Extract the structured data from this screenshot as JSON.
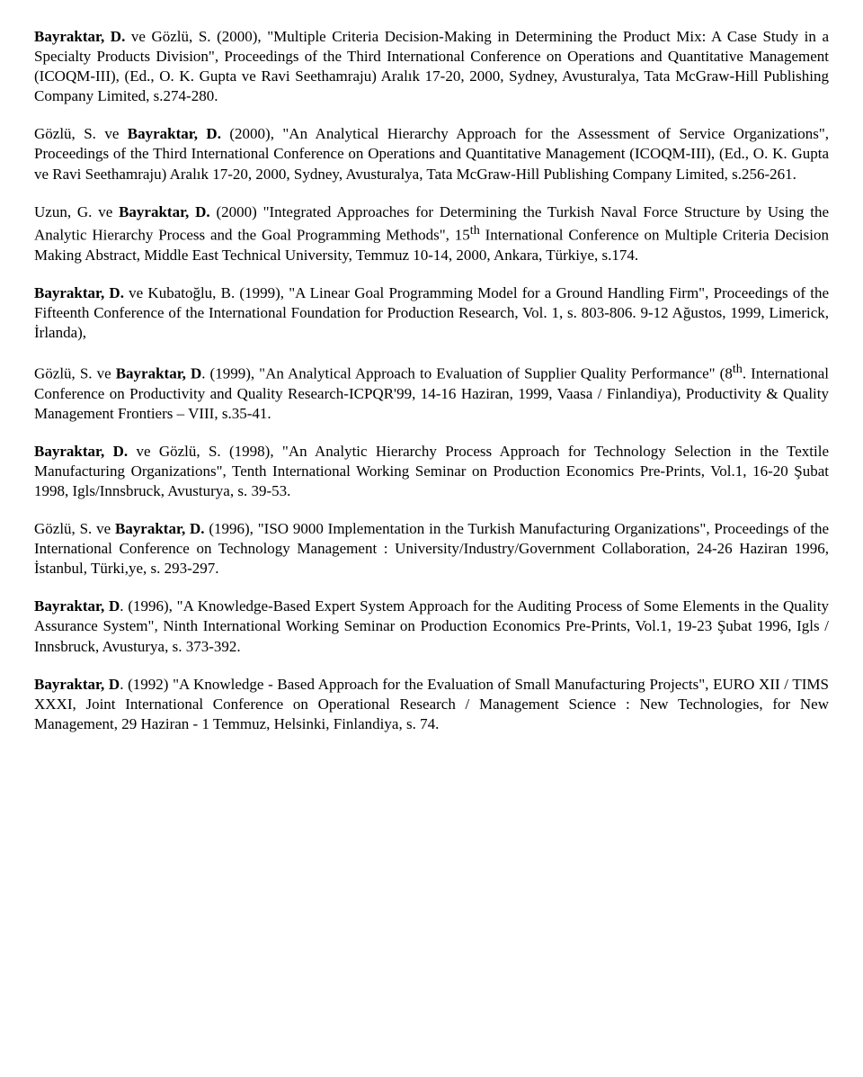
{
  "entries": [
    {
      "segments": [
        {
          "text": "Bayraktar, D.",
          "bold": true
        },
        {
          "text": " ve Gözlü, S. (2000), \"Multiple Criteria Decision-Making in Determining the Product Mix: A Case Study in a Specialty Products Division\", Proceedings of the Third International Conference on Operations and Quantitative Management (ICOQM-III), (Ed., O. K. Gupta ve Ravi Seethamraju) Aralık 17-20, 2000, Sydney, Avusturalya, Tata McGraw-Hill Publishing Company Limited, s.274-280.",
          "bold": false
        }
      ]
    },
    {
      "segments": [
        {
          "text": "Gözlü, S. ve ",
          "bold": false
        },
        {
          "text": "Bayraktar, D.",
          "bold": true
        },
        {
          "text": " (2000), \"An Analytical Hierarchy Approach for the Assessment of Service Organizations\", Proceedings of the Third International Conference on Operations and Quantitative Management (ICOQM-III), (Ed., O. K. Gupta ve Ravi Seethamraju) Aralık 17-20, 2000, Sydney, Avusturalya, Tata McGraw-Hill Publishing Company Limited, s.256-261.",
          "bold": false
        }
      ]
    },
    {
      "segments": [
        {
          "text": "Uzun, G. ve ",
          "bold": false
        },
        {
          "text": "Bayraktar, D.",
          "bold": true
        },
        {
          "text": " (2000) \"Integrated Approaches for Determining the Turkish Naval Force Structure by Using the Analytic Hierarchy Process and the Goal Programming Methods\", 15",
          "bold": false
        },
        {
          "text": "th",
          "bold": false,
          "sup": true
        },
        {
          "text": " International Conference on Multiple Criteria Decision Making Abstract, Middle East Technical University, Temmuz 10-14, 2000, Ankara, Türkiye, s.174.",
          "bold": false
        }
      ]
    },
    {
      "segments": [
        {
          "text": "Bayraktar, D.",
          "bold": true
        },
        {
          "text": " ve Kubatoğlu, B. (1999), \"A Linear Goal Programming Model for a Ground Handling Firm\", Proceedings of the Fifteenth Conference of the International Foundation for Production Research, Vol. 1, s. 803-806. 9-12 Ağustos, 1999, Limerick, İrlanda),",
          "bold": false
        }
      ]
    },
    {
      "segments": [
        {
          "text": "Gözlü, S. ve ",
          "bold": false
        },
        {
          "text": "Bayraktar, D",
          "bold": true
        },
        {
          "text": ". (1999), \"An Analytical Approach to Evaluation of Supplier Quality Performance\" (8",
          "bold": false
        },
        {
          "text": "th",
          "bold": false,
          "sup": true
        },
        {
          "text": ". International Conference on Productivity and Quality Research-ICPQR'99, 14-16 Haziran, 1999, Vaasa / Finlandiya), Productivity & Quality Management Frontiers – VIII, s.35-41.",
          "bold": false
        }
      ]
    },
    {
      "segments": [
        {
          "text": "Bayraktar, D.",
          "bold": true
        },
        {
          "text": " ve Gözlü, S. (1998), \"An Analytic Hierarchy Process Approach for Technology Selection in the Textile Manufacturing Organizations\", Tenth International Working Seminar on Production Economics Pre-Prints, Vol.1, 16-20 Şubat 1998, Igls/Innsbruck, Avusturya, s. 39-53.",
          "bold": false
        }
      ]
    },
    {
      "segments": [
        {
          "text": "Gözlü, S. ve ",
          "bold": false
        },
        {
          "text": "Bayraktar, D.",
          "bold": true
        },
        {
          "text": " (1996), \"ISO 9000 Implementation in the Turkish Manufacturing Organizations\", Proceedings of the International Conference on Technology Management : University/Industry/Government Collaboration, 24-26 Haziran 1996, İstanbul, Türki,ye, s. 293-297.",
          "bold": false
        }
      ]
    },
    {
      "segments": [
        {
          "text": "Bayraktar, D",
          "bold": true
        },
        {
          "text": ". (1996), \"A Knowledge-Based Expert System Approach for the Auditing Process of Some Elements in the Quality Assurance System\", Ninth International Working Seminar on Production Economics Pre-Prints, Vol.1, 19-23 Şubat 1996, Igls / Innsbruck, Avusturya, s. 373-392.",
          "bold": false
        }
      ]
    },
    {
      "segments": [
        {
          "text": "Bayraktar, D",
          "bold": true
        },
        {
          "text": ". (1992) \"A Knowledge - Based Approach for the Evaluation of Small Manufacturing Projects\", EURO XII / TIMS XXXI, Joint International Conference on Operational Research / Management Science : New Technologies, for New Management, 29 Haziran - 1 Temmuz, Helsinki, Finlandiya, s. 74.",
          "bold": false
        }
      ]
    }
  ]
}
